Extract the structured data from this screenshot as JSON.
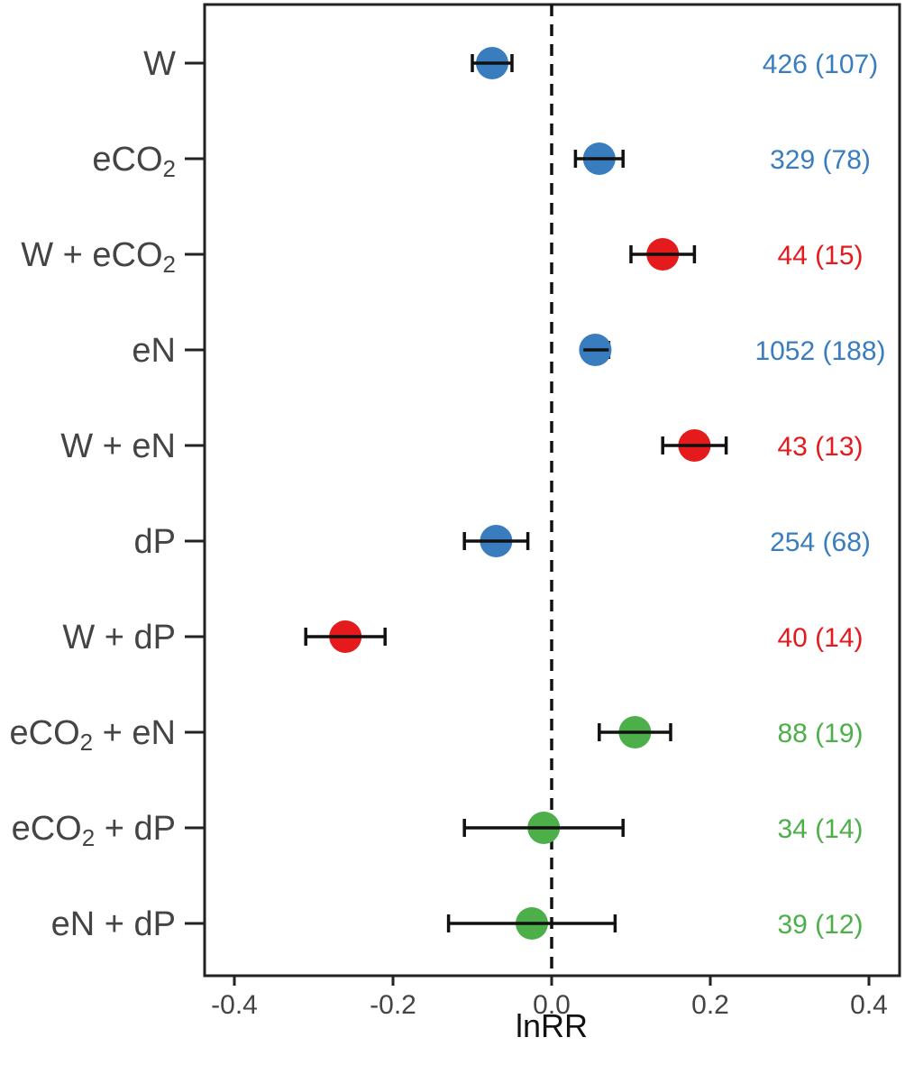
{
  "chart_data": {
    "type": "scatter",
    "subtype": "forest-plot",
    "xlabel": "lnRR",
    "ylabel": "",
    "xlim": [
      -0.44,
      0.44
    ],
    "xticks": [
      -0.4,
      -0.2,
      0.0,
      0.2,
      0.4
    ],
    "xtick_labels": [
      "-0.4",
      "-0.2",
      "0.0",
      "0.2",
      "0.4"
    ],
    "reference_line": 0.0,
    "grid": false,
    "colors": {
      "single": "#3a7dbf",
      "warming_combo": "#e41a1c",
      "other_combo": "#4daf4a"
    },
    "rows": [
      {
        "label": "W",
        "sub": "",
        "suffix": "",
        "estimate": -0.075,
        "ci_low": -0.1,
        "ci_high": -0.05,
        "n": "426 (107)",
        "group": "single"
      },
      {
        "label": "eCO",
        "sub": "2",
        "suffix": "",
        "estimate": 0.06,
        "ci_low": 0.03,
        "ci_high": 0.09,
        "n": "329 (78)",
        "group": "single"
      },
      {
        "label": "W + eCO",
        "sub": "2",
        "suffix": "",
        "estimate": 0.14,
        "ci_low": 0.1,
        "ci_high": 0.18,
        "n": "44 (15)",
        "group": "warming_combo"
      },
      {
        "label": "eN",
        "sub": "",
        "suffix": "",
        "estimate": 0.055,
        "ci_low": 0.04,
        "ci_high": 0.072,
        "n": "1052 (188)",
        "group": "single"
      },
      {
        "label": "W + eN",
        "sub": "",
        "suffix": "",
        "estimate": 0.18,
        "ci_low": 0.14,
        "ci_high": 0.22,
        "n": "43 (13)",
        "group": "warming_combo"
      },
      {
        "label": "dP",
        "sub": "",
        "suffix": "",
        "estimate": -0.07,
        "ci_low": -0.11,
        "ci_high": -0.03,
        "n": "254 (68)",
        "group": "single"
      },
      {
        "label": "W + dP",
        "sub": "",
        "suffix": "",
        "estimate": -0.26,
        "ci_low": -0.31,
        "ci_high": -0.21,
        "n": "40 (14)",
        "group": "warming_combo"
      },
      {
        "label": "eCO",
        "sub": "2",
        "suffix": " + eN",
        "estimate": 0.105,
        "ci_low": 0.06,
        "ci_high": 0.15,
        "n": "88 (19)",
        "group": "other_combo"
      },
      {
        "label": "eCO",
        "sub": "2",
        "suffix": " + dP",
        "estimate": -0.01,
        "ci_low": -0.11,
        "ci_high": 0.09,
        "n": "34 (14)",
        "group": "other_combo"
      },
      {
        "label": "eN + dP",
        "sub": "",
        "suffix": "",
        "estimate": -0.025,
        "ci_low": -0.13,
        "ci_high": 0.08,
        "n": "39 (12)",
        "group": "other_combo"
      }
    ]
  }
}
